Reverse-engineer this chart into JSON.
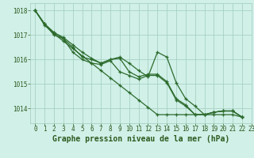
{
  "xlabel": "Graphe pression niveau de la mer (hPa)",
  "xlim": [
    -0.5,
    23
  ],
  "ylim": [
    1013.4,
    1018.3
  ],
  "yticks": [
    1014,
    1015,
    1016,
    1017,
    1018
  ],
  "xticks": [
    0,
    1,
    2,
    3,
    4,
    5,
    6,
    7,
    8,
    9,
    10,
    11,
    12,
    13,
    14,
    15,
    16,
    17,
    18,
    19,
    20,
    21,
    22,
    23
  ],
  "background_color": "#d0f0e8",
  "grid_color": "#a0ccbc",
  "line_color": "#2d6b2d",
  "series": [
    [
      1018.0,
      1017.45,
      1017.1,
      1016.9,
      1016.6,
      1016.3,
      1016.05,
      1015.85,
      1016.0,
      1016.1,
      1015.85,
      1015.55,
      1015.3,
      1016.3,
      1016.1,
      1015.05,
      1014.4,
      1014.1,
      1013.75,
      1013.85,
      1013.9,
      1013.9,
      1013.65
    ],
    [
      1018.0,
      1017.45,
      1017.1,
      1016.85,
      1016.5,
      1016.1,
      1016.0,
      1015.85,
      1016.0,
      1016.05,
      1015.5,
      1015.3,
      1015.4,
      1015.4,
      1015.1,
      1014.4,
      1014.15,
      1013.75,
      1013.75,
      1013.85,
      1013.9,
      1013.9,
      1013.65
    ],
    [
      1018.0,
      1017.45,
      1017.0,
      1016.85,
      1016.3,
      1016.0,
      1015.85,
      1015.8,
      1015.95,
      1015.5,
      1015.35,
      1015.2,
      1015.35,
      1015.35,
      1015.05,
      1014.35,
      1014.1,
      1013.75,
      1013.75,
      1013.85,
      1013.9,
      1013.9,
      1013.65
    ],
    [
      1018.0,
      1017.4,
      1017.05,
      1016.75,
      1016.45,
      1016.15,
      1015.85,
      1015.55,
      1015.25,
      1014.95,
      1014.65,
      1014.35,
      1014.05,
      1013.75,
      1013.75,
      1013.75,
      1013.75,
      1013.75,
      1013.75,
      1013.75,
      1013.75,
      1013.75,
      1013.65
    ]
  ],
  "marker": "+",
  "markersize": 3.5,
  "linewidth": 0.9,
  "font_color": "#2d5a1e",
  "tick_fontsize": 5.5,
  "label_fontsize": 7.0
}
